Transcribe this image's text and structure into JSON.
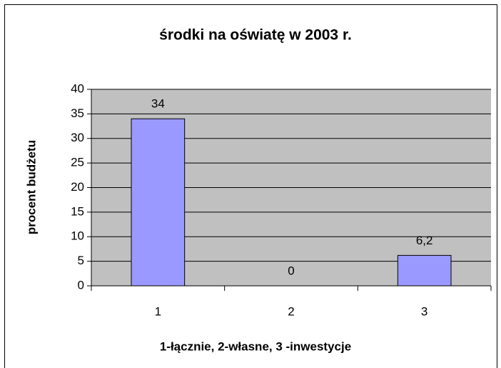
{
  "chart_data": {
    "type": "bar",
    "title": "środki na oświatę w 2003 r.",
    "x_label": "1-łącznie, 2-własne, 3 -inwestycje",
    "y_label": "procent budżetu",
    "categories": [
      "1",
      "2",
      "3"
    ],
    "values": [
      34,
      0,
      6.2
    ],
    "value_labels": [
      "34",
      "0",
      "6,2"
    ],
    "color": "#9999ff",
    "ylim": [
      0,
      40
    ],
    "yticks": [
      0,
      5,
      10,
      15,
      20,
      25,
      30,
      35,
      40
    ],
    "grid": true
  }
}
